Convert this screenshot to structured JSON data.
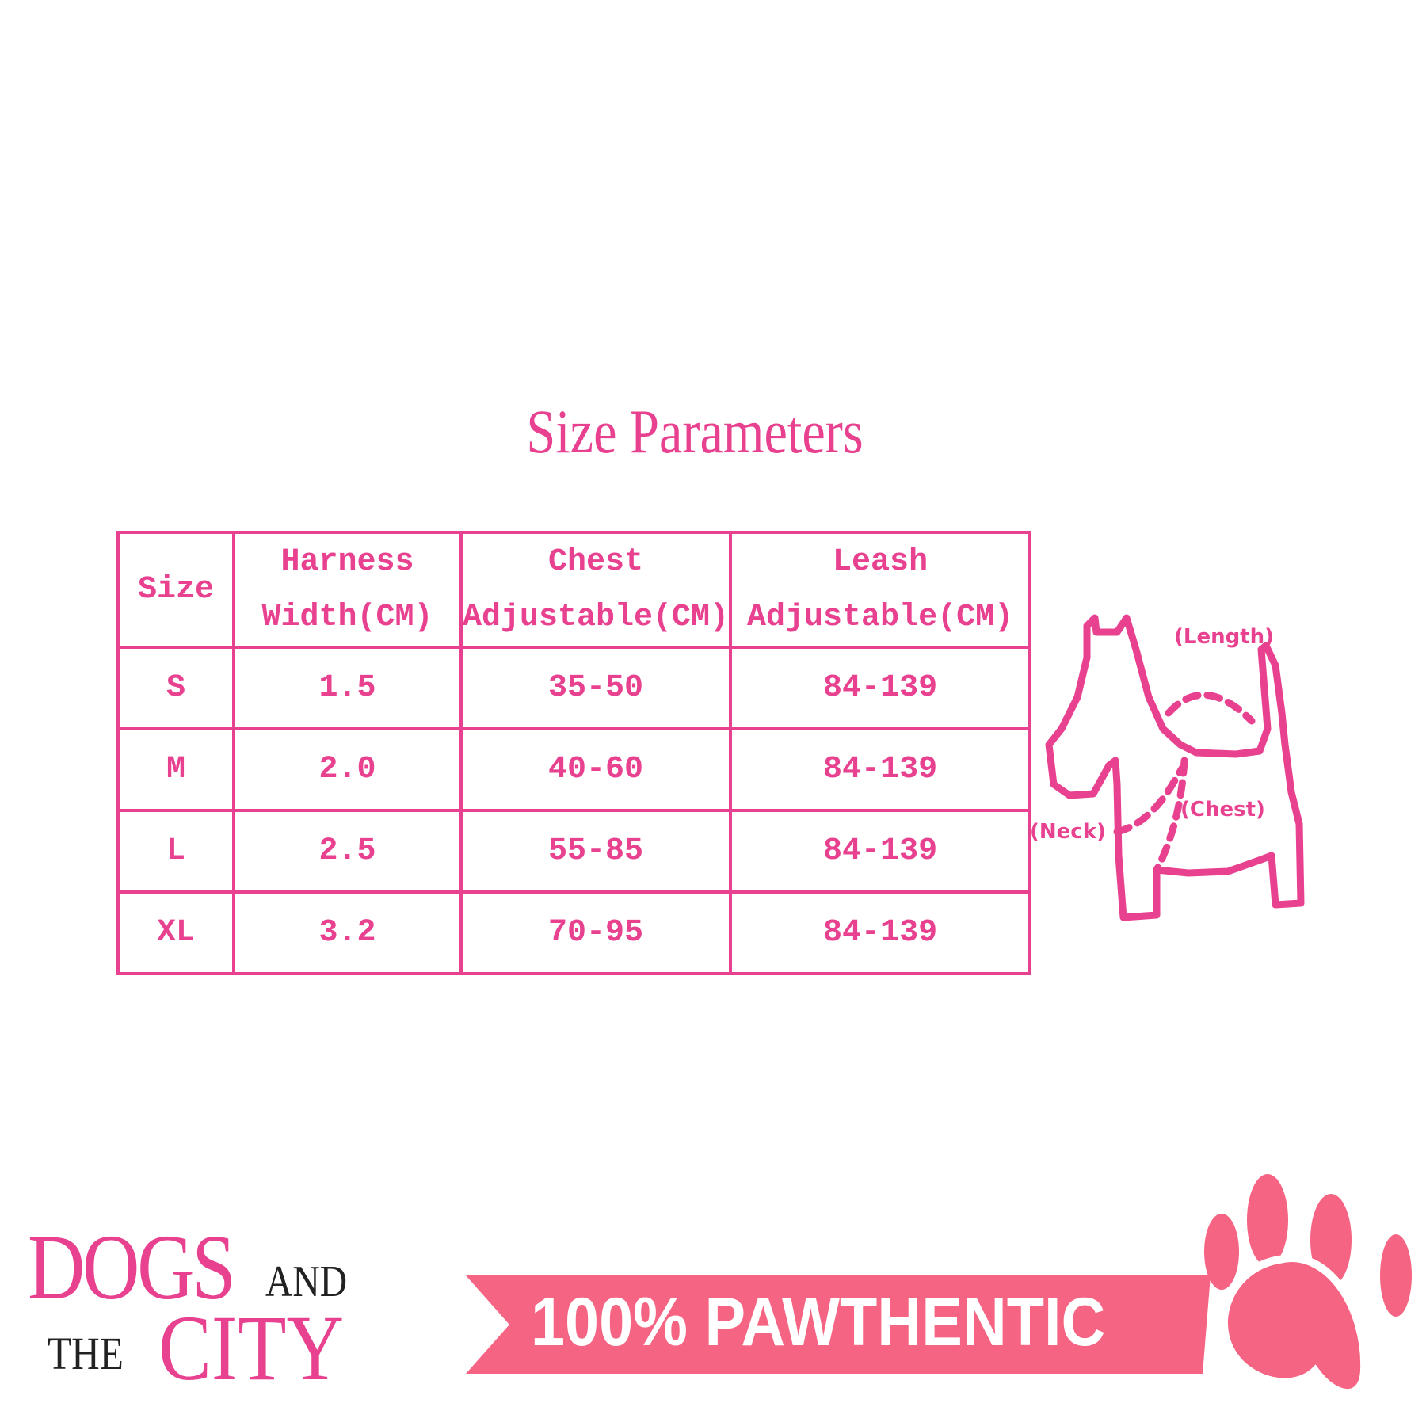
{
  "title": "Size Parameters",
  "table": {
    "headers": [
      [
        "Size",
        ""
      ],
      [
        "Harness",
        "Width(CM)"
      ],
      [
        "Chest",
        "Adjustable(CM)"
      ],
      [
        "Leash",
        "Adjustable(CM)"
      ]
    ],
    "rows": [
      [
        "S",
        "1.5",
        "35-50",
        "84-139"
      ],
      [
        "M",
        "2.0",
        "40-60",
        "84-139"
      ],
      [
        "L",
        "2.5",
        "55-85",
        "84-139"
      ],
      [
        "XL",
        "3.2",
        "70-95",
        "84-139"
      ]
    ]
  },
  "diagram": {
    "labels": {
      "length": "(Length)",
      "chest": "(Chest)",
      "neck": "(Neck)"
    }
  },
  "logo": {
    "dogs": "DOGS",
    "and": "AND",
    "the": "THE",
    "city": "CITY"
  },
  "banner": {
    "text": "100% PAWTHENTIC"
  },
  "colors": {
    "accent": "#e8418f",
    "banner": "#f56482"
  }
}
